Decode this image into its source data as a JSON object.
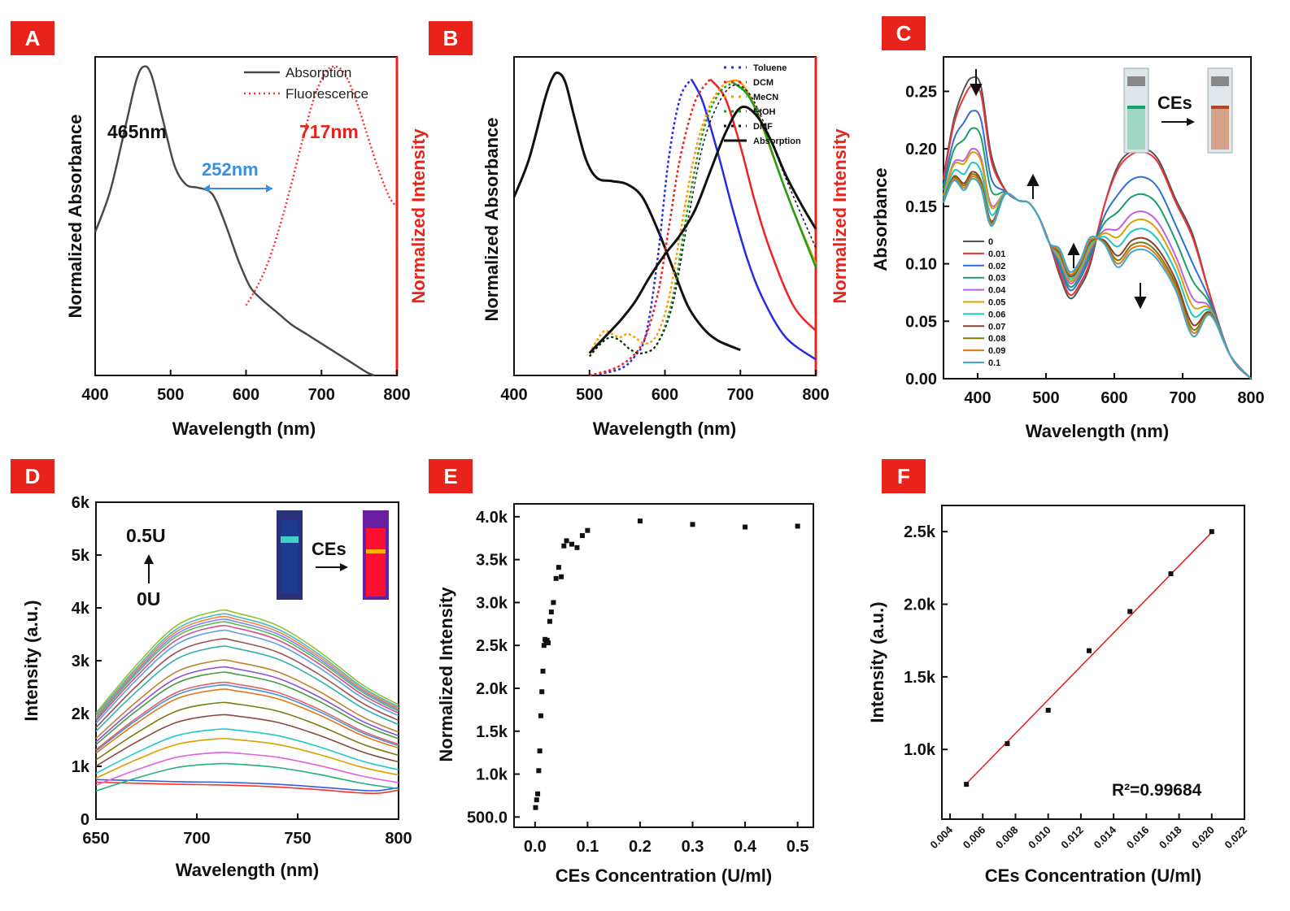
{
  "panels": {
    "A": {
      "label": "A"
    },
    "B": {
      "label": "B"
    },
    "C": {
      "label": "C"
    },
    "D": {
      "label": "D"
    },
    "E": {
      "label": "E"
    },
    "F": {
      "label": "F"
    }
  },
  "colors": {
    "panel_label_bg": "#e8231c",
    "absorption": "#4a4a4a",
    "fluorescence": "#ff3030",
    "annotation_blue": "#3a8ee0",
    "fit_line": "#e41a1c"
  },
  "chart_data": [
    {
      "id": "A",
      "type": "line",
      "xlabel": "Wavelength (nm)",
      "ylabel_left": "Normalized Absorbance",
      "ylabel_right": "Normalized Intensity",
      "xlim": [
        400,
        800
      ],
      "xticks": [
        "400",
        "500",
        "600",
        "700",
        "800"
      ],
      "legend": [
        "Absorption",
        "Fluorescence"
      ],
      "annotations": {
        "peak_abs": "465nm",
        "peak_fl": "717nm",
        "shift": "252nm"
      },
      "series": [
        {
          "name": "Absorption",
          "x": [
            400,
            420,
            440,
            455,
            465,
            475,
            490,
            505,
            520,
            535,
            550,
            560,
            575,
            590,
            605,
            620,
            640,
            660,
            680,
            700,
            720,
            740,
            760,
            770
          ],
          "y": [
            0.45,
            0.58,
            0.78,
            0.93,
            0.97,
            0.94,
            0.8,
            0.66,
            0.6,
            0.59,
            0.58,
            0.55,
            0.46,
            0.36,
            0.28,
            0.24,
            0.2,
            0.16,
            0.13,
            0.1,
            0.07,
            0.04,
            0.01,
            0.0
          ]
        },
        {
          "name": "Fluorescence",
          "x": [
            600,
            615,
            630,
            645,
            660,
            675,
            690,
            705,
            717,
            730,
            745,
            760,
            775,
            790,
            800
          ],
          "y": [
            0.22,
            0.28,
            0.36,
            0.47,
            0.6,
            0.74,
            0.87,
            0.95,
            0.97,
            0.95,
            0.87,
            0.76,
            0.65,
            0.56,
            0.53
          ]
        }
      ]
    },
    {
      "id": "B",
      "type": "line",
      "xlabel": "Wavelength (nm)",
      "ylabel_left": "Normalized Absorbance",
      "ylabel_right": "Normalized Intensity",
      "xlim": [
        400,
        800
      ],
      "xticks": [
        "400",
        "500",
        "600",
        "700",
        "800"
      ],
      "legend": [
        "Toluene",
        "DCM",
        "MeCN",
        "EtOH",
        "DMF",
        "Absorption"
      ],
      "series": [
        {
          "name": "Absorption",
          "x": [
            400,
            420,
            440,
            450,
            458,
            468,
            480,
            495,
            510,
            530,
            550,
            570,
            590,
            610,
            630,
            650,
            670,
            700
          ],
          "y": [
            0.56,
            0.68,
            0.86,
            0.93,
            0.95,
            0.92,
            0.81,
            0.68,
            0.62,
            0.61,
            0.6,
            0.56,
            0.46,
            0.34,
            0.22,
            0.15,
            0.11,
            0.08
          ]
        },
        {
          "name": "Toluene",
          "x": [
            500,
            540,
            560,
            575,
            590,
            605,
            620,
            635,
            650,
            670,
            690,
            710,
            730,
            760,
            800
          ],
          "y": [
            0.0,
            0.02,
            0.06,
            0.13,
            0.36,
            0.68,
            0.87,
            0.93,
            0.86,
            0.7,
            0.52,
            0.36,
            0.24,
            0.12,
            0.05
          ]
        },
        {
          "name": "DCM",
          "x": [
            500,
            540,
            570,
            590,
            605,
            620,
            640,
            660,
            680,
            700,
            720,
            740,
            770,
            800
          ],
          "y": [
            0.0,
            0.03,
            0.1,
            0.25,
            0.46,
            0.68,
            0.86,
            0.93,
            0.87,
            0.72,
            0.54,
            0.39,
            0.22,
            0.14
          ]
        },
        {
          "name": "MeCN",
          "x": [
            500,
            510,
            520,
            530,
            540,
            550,
            560,
            575,
            590,
            605,
            620,
            640,
            660,
            680,
            700,
            720,
            740,
            770,
            800
          ],
          "y": [
            0.07,
            0.11,
            0.14,
            0.13,
            0.12,
            0.13,
            0.12,
            0.1,
            0.13,
            0.24,
            0.44,
            0.7,
            0.85,
            0.92,
            0.92,
            0.84,
            0.71,
            0.52,
            0.35
          ]
        },
        {
          "name": "EtOH",
          "x": [
            500,
            515,
            528,
            540,
            555,
            570,
            590,
            610,
            630,
            650,
            670,
            690,
            710,
            730,
            760,
            800
          ],
          "y": [
            0.06,
            0.1,
            0.12,
            0.11,
            0.08,
            0.07,
            0.1,
            0.24,
            0.52,
            0.76,
            0.88,
            0.92,
            0.88,
            0.78,
            0.58,
            0.34
          ]
        },
        {
          "name": "DMF",
          "x": [
            500,
            515,
            528,
            540,
            555,
            570,
            590,
            610,
            630,
            650,
            670,
            690,
            710,
            730,
            760,
            800
          ],
          "y": [
            0.06,
            0.1,
            0.12,
            0.11,
            0.08,
            0.07,
            0.1,
            0.22,
            0.48,
            0.72,
            0.85,
            0.91,
            0.89,
            0.8,
            0.62,
            0.4
          ]
        },
        {
          "name": "Absorption-2",
          "x": [
            500,
            520,
            540,
            560,
            580,
            600,
            620,
            640,
            660,
            680,
            700,
            720,
            740,
            760,
            780,
            800
          ],
          "y": [
            0.07,
            0.12,
            0.17,
            0.23,
            0.31,
            0.38,
            0.44,
            0.52,
            0.64,
            0.76,
            0.84,
            0.82,
            0.74,
            0.63,
            0.54,
            0.46
          ]
        }
      ]
    },
    {
      "id": "C",
      "type": "line",
      "xlabel": "Wavelength (nm)",
      "ylabel": "Absorbance",
      "xlim": [
        350,
        800
      ],
      "ylim": [
        0,
        0.28
      ],
      "xticks": [
        "400",
        "500",
        "600",
        "700",
        "800"
      ],
      "yticks": [
        "0.00",
        "0.05",
        "0.10",
        "0.15",
        "0.20",
        "0.25"
      ],
      "inset_label": "CEs",
      "legend": [
        "0",
        "0.01",
        "0.02",
        "0.03",
        "0.04",
        "0.05",
        "0.06",
        "0.07",
        "0.08",
        "0.09",
        "0.1"
      ],
      "peak1_values": [
        0.262,
        0.255,
        0.233,
        0.218,
        0.2,
        0.197,
        0.188,
        0.18,
        0.178,
        0.176,
        0.174
      ],
      "peak2_values": [
        0.2,
        0.197,
        0.175,
        0.16,
        0.145,
        0.138,
        0.13,
        0.122,
        0.118,
        0.115,
        0.112
      ],
      "dip_values": [
        0.07,
        0.073,
        0.077,
        0.08,
        0.083,
        0.085,
        0.087,
        0.089,
        0.09,
        0.091,
        0.093
      ]
    },
    {
      "id": "D",
      "type": "line",
      "xlabel": "Wavelength (nm)",
      "ylabel": "Intensity (a.u.)",
      "xlim": [
        650,
        800
      ],
      "ylim": [
        0,
        6000
      ],
      "xticks": [
        "650",
        "700",
        "750",
        "800"
      ],
      "yticks": [
        "0",
        "1k",
        "2k",
        "3k",
        "4k",
        "5k",
        "6k"
      ],
      "annotation_top": "0.5U",
      "annotation_bottom": "0U",
      "inset_label": "CEs",
      "peak_values": [
        650,
        700,
        1050,
        1260,
        1520,
        1700,
        1970,
        2200,
        2450,
        2530,
        2580,
        2770,
        2870,
        3000,
        3260,
        3400,
        3560,
        3650,
        3720,
        3770,
        3820,
        3870,
        3940
      ]
    },
    {
      "id": "E",
      "type": "scatter",
      "xlabel": "CEs Concentration (U/ml)",
      "ylabel": "Normalized Intensity",
      "xlim": [
        -0.04,
        0.53
      ],
      "ylim": [
        380,
        4150
      ],
      "xticks": [
        "0.0",
        "0.1",
        "0.2",
        "0.3",
        "0.4",
        "0.5"
      ],
      "yticks": [
        "500.0",
        "1.0k",
        "1.5k",
        "2.0k",
        "2.5k",
        "3.0k",
        "3.5k",
        "4.0k"
      ],
      "x": [
        0.001,
        0.003,
        0.005,
        0.007,
        0.009,
        0.011,
        0.013,
        0.015,
        0.017,
        0.019,
        0.021,
        0.023,
        0.025,
        0.028,
        0.031,
        0.035,
        0.04,
        0.045,
        0.05,
        0.055,
        0.06,
        0.07,
        0.08,
        0.09,
        0.1,
        0.2,
        0.3,
        0.4,
        0.5
      ],
      "y": [
        610,
        700,
        770,
        1040,
        1270,
        1680,
        1960,
        2200,
        2500,
        2570,
        2550,
        2560,
        2530,
        2780,
        2890,
        3000,
        3280,
        3410,
        3300,
        3660,
        3720,
        3680,
        3640,
        3780,
        3840,
        3950,
        3910,
        3880,
        3890
      ]
    },
    {
      "id": "F",
      "type": "scatter",
      "xlabel": "CEs Concentration (U/ml)",
      "ylabel": "Intensity (a.u.)",
      "xlim": [
        0.0035,
        0.022
      ],
      "ylim": [
        520,
        2680
      ],
      "xticks": [
        "0.004",
        "0.006",
        "0.008",
        "0.010",
        "0.012",
        "0.014",
        "0.016",
        "0.018",
        "0.020",
        "0.022"
      ],
      "yticks": [
        "1.0k",
        "1.5k",
        "2.0k",
        "2.5k"
      ],
      "x": [
        0.005,
        0.0075,
        0.01,
        0.0125,
        0.015,
        0.0175,
        0.02
      ],
      "y": [
        760,
        1040,
        1270,
        1680,
        1950,
        2210,
        2500
      ],
      "fit": {
        "x": [
          0.005,
          0.02
        ],
        "y": [
          765,
          2495
        ]
      },
      "r2_label": "R²=0.99684"
    }
  ]
}
